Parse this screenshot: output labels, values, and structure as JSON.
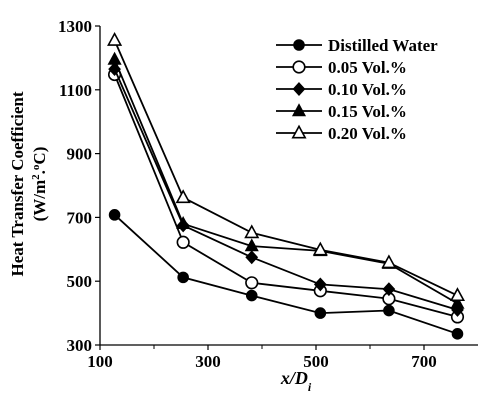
{
  "chart_data": {
    "type": "line",
    "xlabel": "x/D",
    "xlabel_sub": "i",
    "ylabel_line1": "Heat Transfer Coefficient",
    "ylabel_line2": "(W/m",
    "ylabel_sup1": "2",
    "ylabel_mid": ".",
    "ylabel_sup2": "o",
    "ylabel_end": "C)",
    "xlim": [
      100,
      800
    ],
    "ylim": [
      300,
      1300
    ],
    "xticks": [
      100,
      300,
      500,
      700
    ],
    "yticks": [
      300,
      500,
      700,
      900,
      1100,
      1300
    ],
    "grid": false,
    "legend_position": "top-right",
    "x": [
      127,
      254,
      381,
      508,
      635,
      762
    ],
    "series": [
      {
        "name": "Distilled Water",
        "marker": "filled-circle",
        "values": [
          708,
          512,
          455,
          400,
          408,
          335
        ]
      },
      {
        "name": "0.05 Vol.%",
        "marker": "open-circle",
        "values": [
          1148,
          622,
          495,
          470,
          445,
          388
        ]
      },
      {
        "name": "0.10 Vol.%",
        "marker": "filled-diamond",
        "values": [
          1165,
          675,
          575,
          490,
          475,
          410
        ]
      },
      {
        "name": "0.15 Vol.%",
        "marker": "filled-triangle",
        "values": [
          1195,
          680,
          610,
          595,
          555,
          430
        ]
      },
      {
        "name": "0.20 Vol.%",
        "marker": "open-triangle",
        "values": [
          1255,
          762,
          652,
          598,
          558,
          455
        ]
      }
    ],
    "extra_series_note": ""
  }
}
